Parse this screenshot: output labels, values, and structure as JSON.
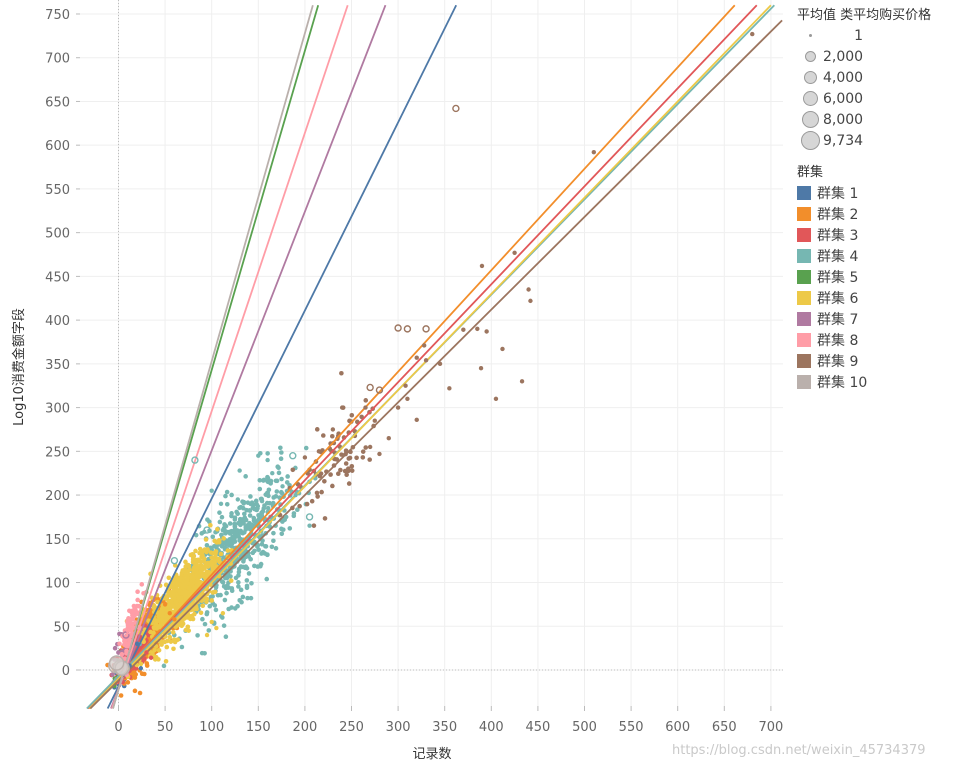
{
  "chart_data": {
    "type": "scatter",
    "xlabel": "记录数",
    "ylabel": "Log10消费金额字段",
    "xlim": [
      -40,
      712
    ],
    "ylim": [
      -44,
      760
    ],
    "x_ticks": [
      0,
      50,
      100,
      150,
      200,
      250,
      300,
      350,
      400,
      450,
      500,
      550,
      600,
      650,
      700
    ],
    "y_ticks": [
      0,
      50,
      100,
      150,
      200,
      250,
      300,
      350,
      400,
      450,
      500,
      550,
      600,
      650,
      700,
      750
    ],
    "x_tick_labels": [
      "0",
      "50",
      "100",
      "150",
      "200",
      "250",
      "300",
      "350",
      "400",
      "450",
      "500",
      "550",
      "600",
      "650",
      "700"
    ],
    "y_tick_labels": [
      "0",
      "50",
      "100",
      "150",
      "200",
      "250",
      "300",
      "350",
      "400",
      "450",
      "500",
      "550",
      "600",
      "650",
      "700",
      "750"
    ],
    "grid": true,
    "size_legend": {
      "title": "平均值 类平均购买价格",
      "entries": [
        {
          "label": "1",
          "value": 1
        },
        {
          "label": "2,000",
          "value": 2000
        },
        {
          "label": "4,000",
          "value": 4000
        },
        {
          "label": "6,000",
          "value": 6000
        },
        {
          "label": "8,000",
          "value": 8000
        },
        {
          "label": "9,734",
          "value": 9734
        }
      ]
    },
    "color_legend_title": "群集",
    "legend_position": "right",
    "series": [
      {
        "name": "群集 1",
        "color": "#4e79a7",
        "trend": {
          "slope": 2.15,
          "intercept": -19
        },
        "clouds": [
          {
            "cx": 8,
            "cy": 12,
            "sx": 6,
            "sy": 10,
            "n": 30
          }
        ],
        "points": [
          [
            24,
            2
          ],
          [
            20,
            30
          ],
          [
            12,
            5
          ]
        ]
      },
      {
        "name": "群集 2",
        "color": "#f28e2b",
        "trend": {
          "slope": 1.16,
          "intercept": -7
        },
        "clouds": [
          {
            "cx": 30,
            "cy": 38,
            "sx": 12,
            "sy": 14,
            "n": 650
          }
        ],
        "points": [
          [
            55,
            65
          ],
          [
            50,
            75
          ],
          [
            60,
            58
          ]
        ]
      },
      {
        "name": "群集 3",
        "color": "#e15759",
        "trend": {
          "slope": 1.12,
          "intercept": -7
        },
        "clouds": [
          {
            "cx": 16,
            "cy": 18,
            "sx": 8,
            "sy": 10,
            "n": 200
          }
        ],
        "points": [
          [
            30,
            20
          ],
          [
            35,
            14
          ]
        ]
      },
      {
        "name": "群集 4",
        "color": "#76b7b2",
        "trend": {
          "slope": 1.09,
          "intercept": -7
        },
        "clouds": [
          {
            "cx": 128,
            "cy": 140,
            "sx": 28,
            "sy": 28,
            "n": 520
          }
        ],
        "points": [
          [
            160,
            240
          ],
          [
            176,
            210
          ],
          [
            180,
            175
          ],
          [
            165,
            225
          ],
          [
            150,
            245
          ],
          [
            190,
            200
          ],
          [
            205,
            165
          ],
          [
            100,
            205
          ],
          [
            110,
            190
          ],
          [
            130,
            228
          ],
          [
            92,
            158
          ],
          [
            128,
            195
          ]
        ],
        "hollow": [
          [
            82,
            240
          ],
          [
            95,
            160
          ],
          [
            60,
            125
          ],
          [
            187,
            245
          ],
          [
            205,
            175
          ]
        ]
      },
      {
        "name": "群集 5",
        "color": "#59a14f",
        "trend": {
          "slope": 3.65,
          "intercept": -22
        },
        "clouds": [
          {
            "cx": 0,
            "cy": 4,
            "sx": 4,
            "sy": 8,
            "n": 15
          }
        ],
        "points": []
      },
      {
        "name": "群集 6",
        "color": "#edc948",
        "trend": {
          "slope": 1.1,
          "intercept": -10
        },
        "clouds": [
          {
            "cx": 70,
            "cy": 85,
            "sx": 18,
            "sy": 18,
            "n": 700
          }
        ],
        "points": [
          [
            105,
            48
          ],
          [
            100,
            55
          ],
          [
            112,
            65
          ],
          [
            95,
            40
          ]
        ]
      },
      {
        "name": "群集 7",
        "color": "#b07aa1",
        "trend": {
          "slope": 2.73,
          "intercept": -22
        },
        "clouds": [
          {
            "cx": 4,
            "cy": 22,
            "sx": 5,
            "sy": 12,
            "n": 25
          }
        ],
        "points": [],
        "hollow": [
          [
            8,
            40
          ]
        ]
      },
      {
        "name": "群集 8",
        "color": "#ff9da7",
        "trend": {
          "slope": 3.18,
          "intercept": -22
        },
        "clouds": [
          {
            "cx": 10,
            "cy": 40,
            "sx": 6,
            "sy": 14,
            "n": 80
          }
        ],
        "points": [],
        "hollow": [
          [
            12,
            45
          ],
          [
            20,
            70
          ]
        ]
      },
      {
        "name": "群集 9",
        "color": "#9c755f",
        "trend": {
          "slope": 1.06,
          "intercept": -12
        },
        "clouds": [
          {
            "cx": 230,
            "cy": 240,
            "sx": 25,
            "sy": 25,
            "n": 80
          }
        ],
        "points": [
          [
            680,
            727
          ],
          [
            510,
            592
          ],
          [
            425,
            477
          ],
          [
            390,
            462
          ],
          [
            440,
            435
          ],
          [
            442,
            422
          ],
          [
            370,
            389
          ],
          [
            412,
            367
          ],
          [
            385,
            390
          ],
          [
            395,
            387
          ],
          [
            345,
            350
          ],
          [
            330,
            354
          ],
          [
            320,
            357
          ],
          [
            308,
            325
          ],
          [
            290,
            265
          ],
          [
            280,
            247
          ],
          [
            270,
            255
          ],
          [
            275,
            285
          ],
          [
            328,
            371
          ],
          [
            405,
            310
          ],
          [
            389,
            345
          ],
          [
            433,
            330
          ],
          [
            355,
            322
          ],
          [
            320,
            286
          ],
          [
            310,
            310
          ],
          [
            300,
            300
          ],
          [
            265,
            300
          ],
          [
            240,
            300
          ],
          [
            215,
            250
          ],
          [
            200,
            243
          ],
          [
            230,
            275
          ]
        ],
        "hollow": [
          [
            362,
            642
          ],
          [
            270,
            323
          ],
          [
            300,
            391
          ],
          [
            310,
            390
          ],
          [
            330,
            390
          ],
          [
            280,
            320
          ]
        ]
      },
      {
        "name": "群集 10",
        "color": "#bab0ac",
        "trend": {
          "slope": 3.75,
          "intercept": -22
        },
        "clouds": [],
        "points": [],
        "hollow": [
          [
            -3,
            5
          ],
          [
            2,
            3
          ],
          [
            4,
            2
          ],
          [
            -2,
            8
          ]
        ]
      }
    ]
  },
  "watermark": "https://blog.csdn.net/weixin_45734379"
}
